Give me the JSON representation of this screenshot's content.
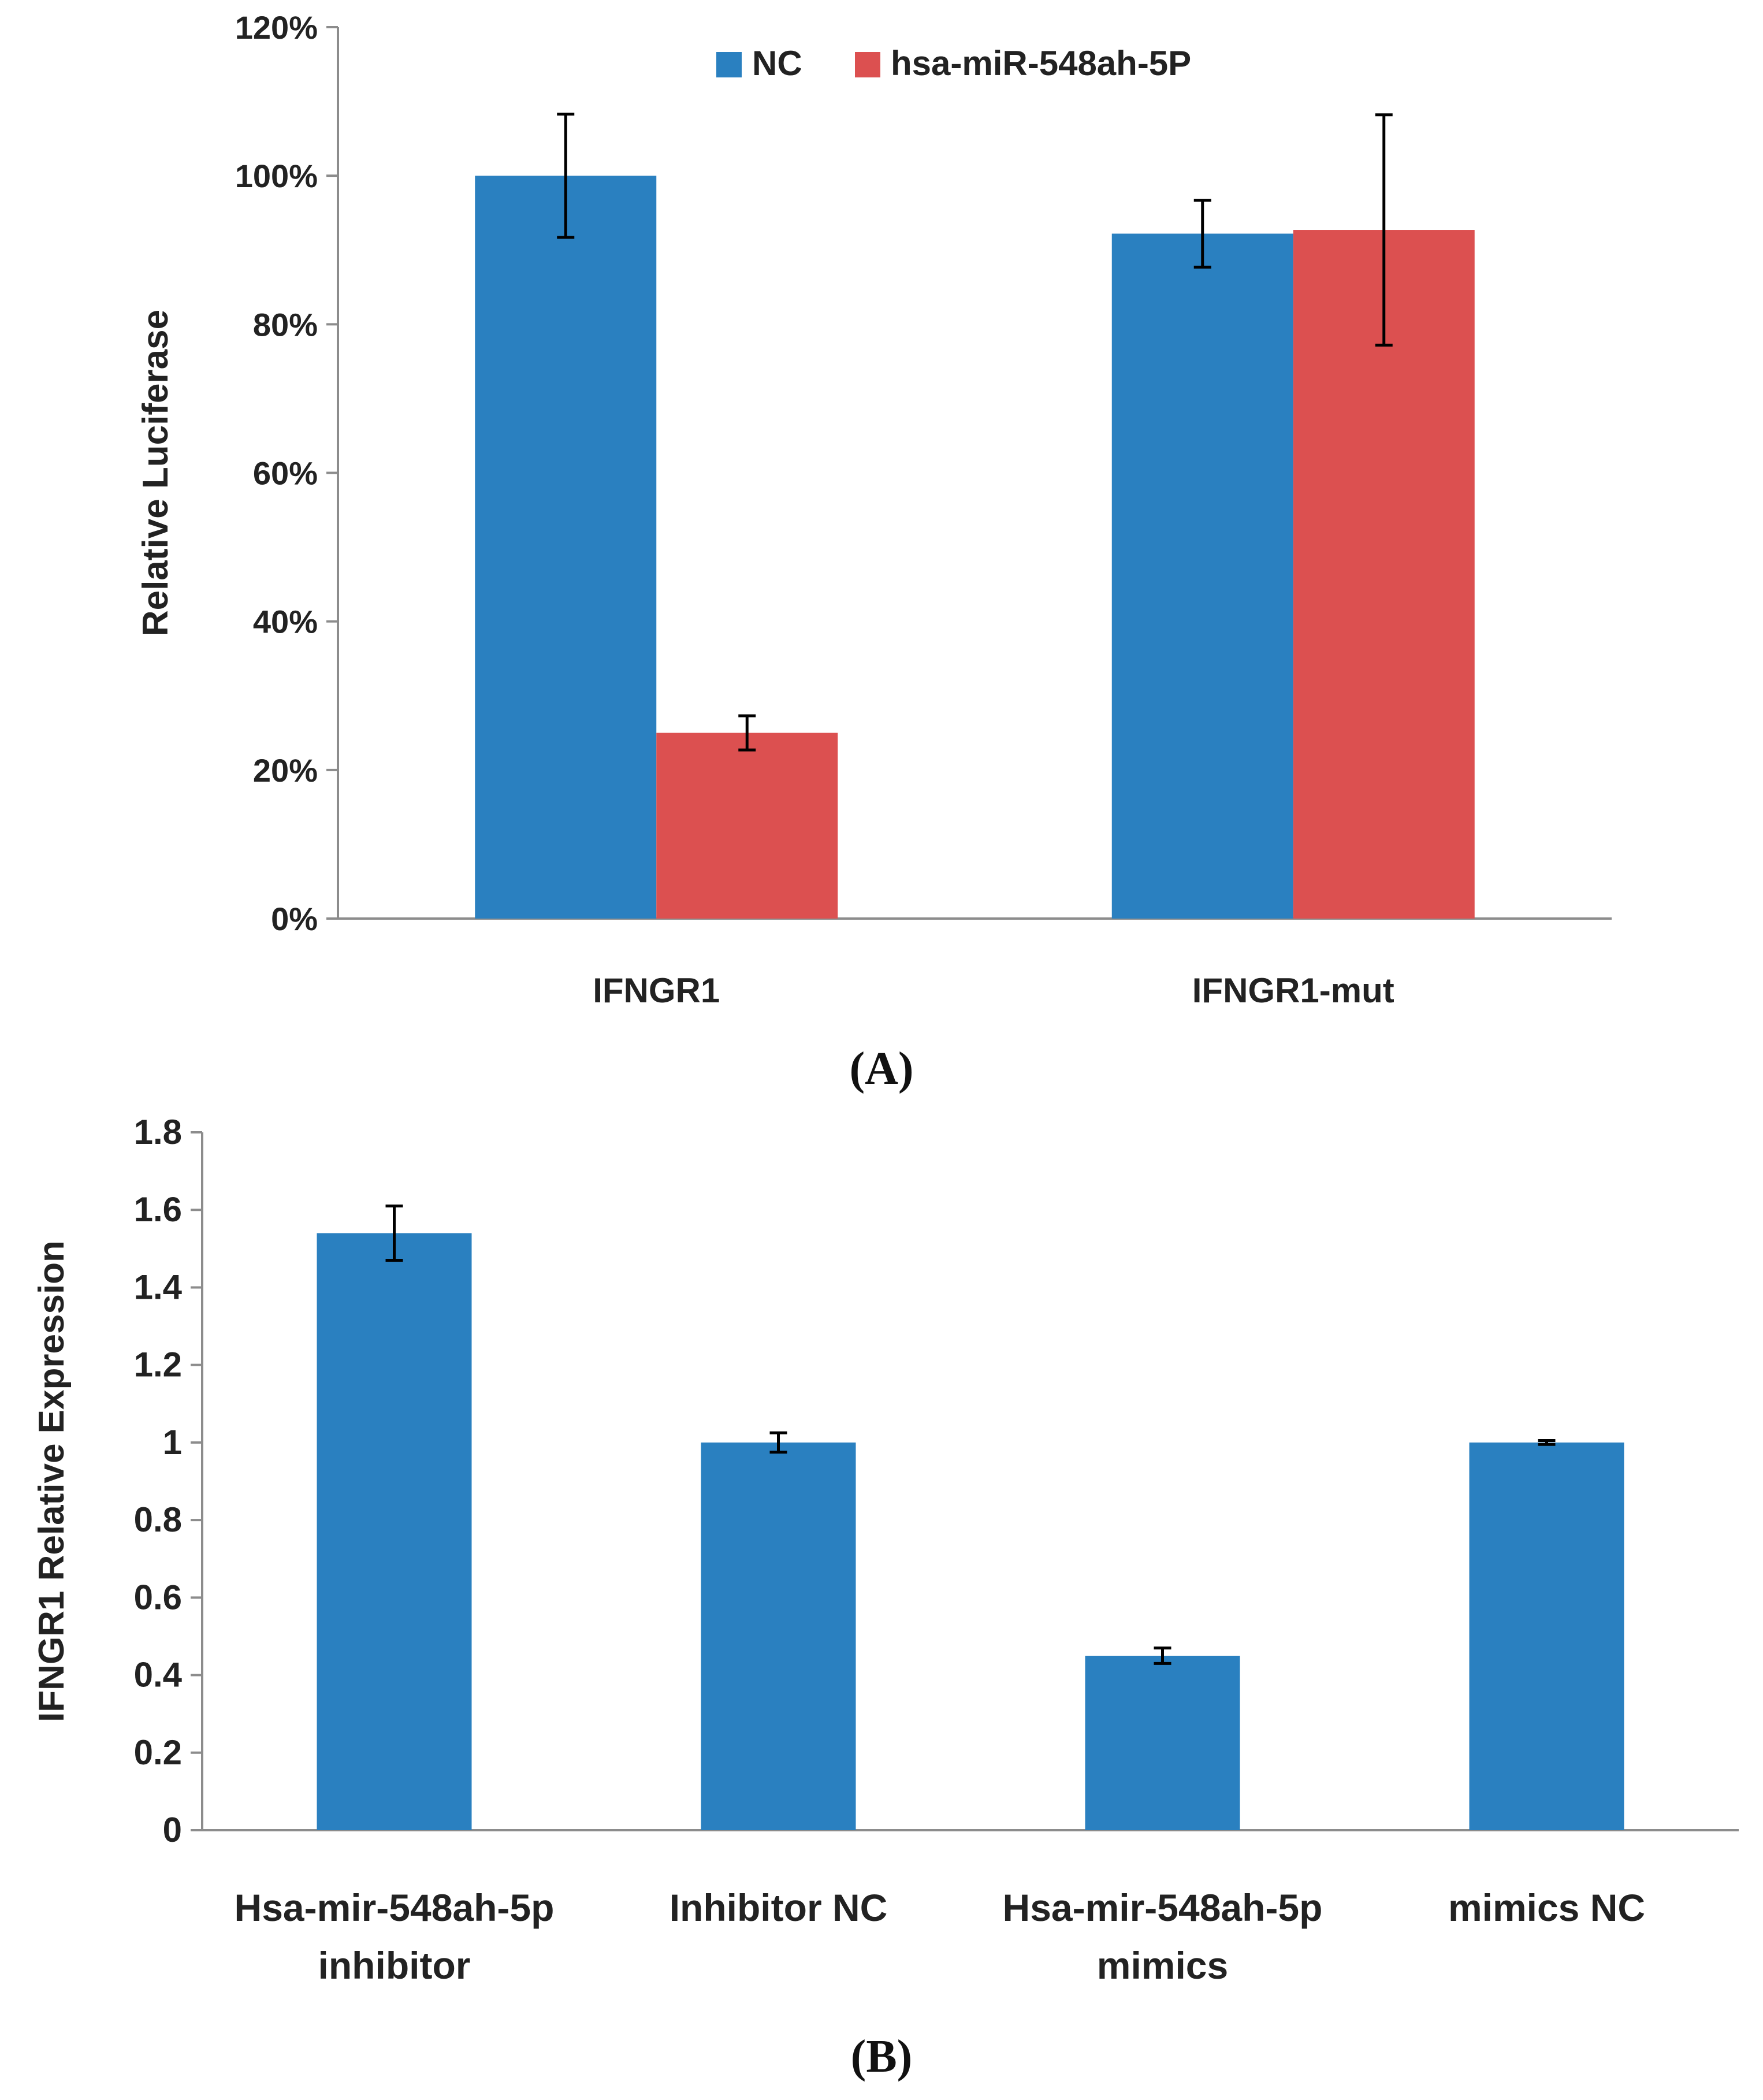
{
  "chart_data": [
    {
      "type": "bar",
      "panel_label": "(A)",
      "title": "",
      "xlabel": "",
      "ylabel": "Relative Luciferase",
      "categories": [
        "IFNGR1",
        "IFNGR1-mut"
      ],
      "series": [
        {
          "name": "NC",
          "color": "#2a80c0",
          "values": [
            100,
            92.2
          ],
          "errors": [
            8.3,
            4.5
          ]
        },
        {
          "name": "hsa-miR-548ah-5P",
          "color": "#dc5050",
          "values": [
            25,
            92.7
          ],
          "errors": [
            2.3,
            15.5
          ]
        }
      ],
      "ylim": [
        0,
        120
      ],
      "yticks": [
        0,
        20,
        40,
        60,
        80,
        100,
        120
      ],
      "ytick_labels": [
        "0%",
        "20%",
        "40%",
        "60%",
        "80%",
        "100%",
        "120%"
      ],
      "legend": "top-center",
      "grid": false
    },
    {
      "type": "bar",
      "panel_label": "(B)",
      "title": "",
      "xlabel": "",
      "ylabel": "IFNGR1 Relative Expression",
      "categories": [
        [
          "Hsa-mir-548ah-5p",
          "inhibitor"
        ],
        [
          "Inhibitor NC"
        ],
        [
          "Hsa-mir-548ah-5p",
          "mimics"
        ],
        [
          "mimics NC"
        ]
      ],
      "series": [
        {
          "name": "IFNGR1",
          "color": "#2a80c0",
          "values": [
            1.54,
            1.0,
            0.45,
            1.0
          ],
          "errors": [
            0.07,
            0.025,
            0.02,
            0.005
          ]
        }
      ],
      "ylim": [
        0,
        1.8
      ],
      "yticks": [
        0,
        0.2,
        0.4,
        0.6,
        0.8,
        1,
        1.2,
        1.4,
        1.6,
        1.8
      ],
      "ytick_labels": [
        "0",
        "0.2",
        "0.4",
        "0.6",
        "0.8",
        "1",
        "1.2",
        "1.4",
        "1.6",
        "1.8"
      ],
      "legend": "none",
      "grid": false
    }
  ]
}
